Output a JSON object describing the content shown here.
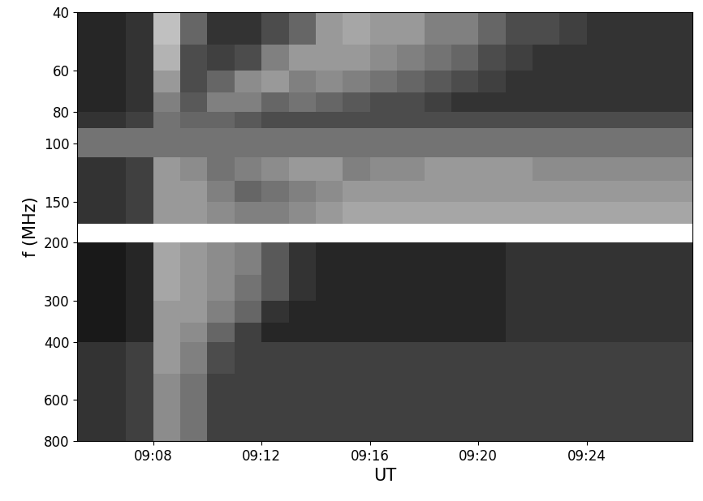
{
  "chart_data": {
    "type": "heatmap",
    "xlabel": "UT",
    "ylabel": "f (MHz)",
    "log": "y",
    "grid": false,
    "color": "gray",
    "clim": [
      0,
      1
    ],
    "xlim": [
      5.2,
      27.9
    ],
    "ylim": [
      800,
      40
    ],
    "xticks": [
      {
        "value": 8,
        "label": "09:08"
      },
      {
        "value": 12,
        "label": "09:12"
      },
      {
        "value": 16,
        "label": "09:16"
      },
      {
        "value": 20,
        "label": "09:20"
      },
      {
        "value": 24,
        "label": "09:24"
      }
    ],
    "yticks": [
      40,
      60,
      80,
      100,
      150,
      200,
      300,
      400,
      600,
      800
    ],
    "x_edges": [
      5,
      6,
      7,
      8,
      9,
      10,
      11,
      12,
      13,
      14,
      15,
      16,
      17,
      18,
      19,
      20,
      21,
      22,
      23,
      24,
      25,
      26,
      27,
      28
    ],
    "y_edges": [
      40,
      50,
      60,
      70,
      80,
      90,
      110,
      130,
      150,
      175,
      200,
      250,
      300,
      350,
      400,
      500,
      600,
      700,
      800
    ],
    "cells": [
      [
        0.15,
        0.15,
        0.2,
        0.75,
        0.4,
        0.2,
        0.2,
        0.3,
        0.4,
        0.6,
        0.65,
        0.6,
        0.6,
        0.5,
        0.5,
        0.4,
        0.3,
        0.3,
        0.25,
        0.2,
        0.2,
        0.2,
        0.2
      ],
      [
        0.15,
        0.15,
        0.2,
        0.7,
        0.3,
        0.25,
        0.3,
        0.5,
        0.6,
        0.6,
        0.6,
        0.55,
        0.5,
        0.45,
        0.4,
        0.3,
        0.25,
        0.2,
        0.2,
        0.2,
        0.2,
        0.2,
        0.2
      ],
      [
        0.15,
        0.15,
        0.2,
        0.6,
        0.3,
        0.4,
        0.55,
        0.6,
        0.5,
        0.55,
        0.5,
        0.45,
        0.4,
        0.35,
        0.3,
        0.25,
        0.2,
        0.2,
        0.2,
        0.2,
        0.2,
        0.2,
        0.2
      ],
      [
        0.15,
        0.15,
        0.2,
        0.5,
        0.35,
        0.5,
        0.5,
        0.4,
        0.45,
        0.4,
        0.35,
        0.3,
        0.3,
        0.25,
        0.2,
        0.2,
        0.2,
        0.2,
        0.2,
        0.2,
        0.2,
        0.2,
        0.2
      ],
      [
        0.2,
        0.2,
        0.25,
        0.45,
        0.4,
        0.4,
        0.35,
        0.3,
        0.3,
        0.3,
        0.3,
        0.3,
        0.3,
        0.3,
        0.3,
        0.3,
        0.3,
        0.3,
        0.3,
        0.3,
        0.3,
        0.3,
        0.3
      ],
      [
        0.45,
        0.45,
        0.45,
        0.45,
        0.45,
        0.45,
        0.45,
        0.45,
        0.45,
        0.45,
        0.45,
        0.45,
        0.45,
        0.45,
        0.45,
        0.45,
        0.45,
        0.45,
        0.45,
        0.45,
        0.45,
        0.45,
        0.45
      ],
      [
        0.2,
        0.2,
        0.25,
        0.6,
        0.55,
        0.45,
        0.5,
        0.55,
        0.6,
        0.6,
        0.5,
        0.55,
        0.55,
        0.6,
        0.6,
        0.6,
        0.6,
        0.55,
        0.55,
        0.55,
        0.55,
        0.55,
        0.55
      ],
      [
        0.2,
        0.2,
        0.25,
        0.6,
        0.6,
        0.5,
        0.4,
        0.45,
        0.5,
        0.55,
        0.6,
        0.6,
        0.6,
        0.6,
        0.6,
        0.6,
        0.6,
        0.6,
        0.6,
        0.6,
        0.6,
        0.6,
        0.6
      ],
      [
        0.2,
        0.2,
        0.25,
        0.6,
        0.6,
        0.55,
        0.5,
        0.5,
        0.55,
        0.6,
        0.65,
        0.65,
        0.65,
        0.65,
        0.65,
        0.65,
        0.65,
        0.65,
        0.65,
        0.65,
        0.65,
        0.65,
        0.65
      ],
      [
        null,
        null,
        null,
        null,
        null,
        null,
        null,
        null,
        null,
        null,
        null,
        null,
        null,
        null,
        null,
        null,
        null,
        null,
        null,
        null,
        null,
        null,
        null
      ],
      [
        0.1,
        0.1,
        0.15,
        0.65,
        0.6,
        0.55,
        0.5,
        0.35,
        0.2,
        0.15,
        0.15,
        0.15,
        0.15,
        0.15,
        0.15,
        0.15,
        0.2,
        0.2,
        0.2,
        0.2,
        0.2,
        0.2,
        0.2
      ],
      [
        0.1,
        0.1,
        0.15,
        0.65,
        0.6,
        0.55,
        0.45,
        0.35,
        0.2,
        0.15,
        0.15,
        0.15,
        0.15,
        0.15,
        0.15,
        0.15,
        0.2,
        0.2,
        0.2,
        0.2,
        0.2,
        0.2,
        0.2
      ],
      [
        0.1,
        0.1,
        0.15,
        0.6,
        0.6,
        0.5,
        0.4,
        0.2,
        0.15,
        0.15,
        0.15,
        0.15,
        0.15,
        0.15,
        0.15,
        0.15,
        0.2,
        0.2,
        0.2,
        0.2,
        0.2,
        0.2,
        0.2
      ],
      [
        0.1,
        0.1,
        0.15,
        0.6,
        0.55,
        0.4,
        0.25,
        0.15,
        0.15,
        0.15,
        0.15,
        0.15,
        0.15,
        0.15,
        0.15,
        0.15,
        0.2,
        0.2,
        0.2,
        0.2,
        0.2,
        0.2,
        0.2
      ],
      [
        0.2,
        0.2,
        0.25,
        0.6,
        0.5,
        0.3,
        0.25,
        0.25,
        0.25,
        0.25,
        0.25,
        0.25,
        0.25,
        0.25,
        0.25,
        0.25,
        0.25,
        0.25,
        0.25,
        0.25,
        0.25,
        0.25,
        0.25
      ],
      [
        0.2,
        0.2,
        0.25,
        0.55,
        0.45,
        0.25,
        0.25,
        0.25,
        0.25,
        0.25,
        0.25,
        0.25,
        0.25,
        0.25,
        0.25,
        0.25,
        0.25,
        0.25,
        0.25,
        0.25,
        0.25,
        0.25,
        0.25
      ],
      [
        0.2,
        0.2,
        0.25,
        0.55,
        0.45,
        0.25,
        0.25,
        0.25,
        0.25,
        0.25,
        0.25,
        0.25,
        0.25,
        0.25,
        0.25,
        0.25,
        0.25,
        0.25,
        0.25,
        0.25,
        0.25,
        0.25,
        0.25
      ],
      [
        0.2,
        0.2,
        0.25,
        0.55,
        0.45,
        0.25,
        0.25,
        0.25,
        0.25,
        0.25,
        0.25,
        0.25,
        0.25,
        0.25,
        0.25,
        0.25,
        0.25,
        0.25,
        0.25,
        0.25,
        0.25,
        0.25,
        0.25
      ]
    ]
  }
}
